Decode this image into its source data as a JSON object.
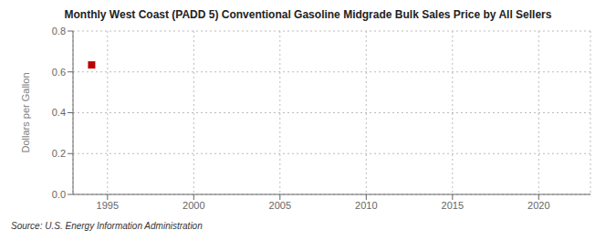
{
  "chart_data": {
    "type": "scatter",
    "title": "Monthly West Coast (PADD 5) Conventional Gasoline Midgrade Bulk Sales Price by All Sellers",
    "ylabel": "Dollars per Gallon",
    "annotations": [
      "Source: U.S. Energy Information Administration"
    ],
    "x": [
      1994.08
    ],
    "values": [
      0.634
    ],
    "color": "#bb0000",
    "marker": "square",
    "xlim": [
      1993.0,
      2023.0
    ],
    "ylim": [
      0.0,
      0.8
    ],
    "xticks": [
      1995,
      2000,
      2005,
      2010,
      2015,
      2020
    ],
    "yticks": [
      {
        "value": 0.0,
        "label": "0.0"
      },
      0.2,
      0.4,
      0.6,
      0.8
    ],
    "grid": true
  }
}
